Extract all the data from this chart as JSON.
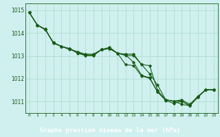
{
  "title": "Graphe pression niveau de la mer (hPa)",
  "bg_color": "#cff0ee",
  "label_bg_color": "#2d7a5a",
  "grid_color": "#b0ddd4",
  "line_color": "#1a5c1a",
  "text_color": "#ffffff",
  "axis_label_color": "#1a5c1a",
  "xlim": [
    -0.5,
    23.5
  ],
  "ylim": [
    1010.5,
    1015.3
  ],
  "yticks": [
    1011,
    1012,
    1013,
    1014,
    1015
  ],
  "xticks": [
    0,
    1,
    2,
    3,
    4,
    5,
    6,
    7,
    8,
    9,
    10,
    11,
    12,
    13,
    14,
    15,
    16,
    17,
    18,
    19,
    20,
    21,
    22,
    23
  ],
  "series": [
    [
      1014.9,
      1014.35,
      1014.15,
      1013.58,
      1013.42,
      1013.32,
      1013.15,
      1013.05,
      1013.05,
      1013.28,
      1013.32,
      1013.12,
      1013.05,
      1012.72,
      1012.15,
      1012.05,
      1011.42,
      1011.05,
      1010.92,
      1011.02,
      1010.82,
      1011.22,
      1011.52,
      1011.52
    ],
    [
      1014.9,
      1014.35,
      1014.15,
      1013.58,
      1013.42,
      1013.32,
      1013.12,
      1013.02,
      1013.02,
      1013.28,
      1013.32,
      1013.12,
      1012.62,
      1012.58,
      1012.12,
      1012.02,
      1011.42,
      1011.08,
      1011.02,
      1010.88,
      1010.82,
      1011.18,
      1011.52,
      1011.52
    ],
    [
      1014.9,
      1014.35,
      1014.18,
      1013.55,
      1013.42,
      1013.28,
      1013.18,
      1013.02,
      1013.02,
      1013.28,
      1013.32,
      1013.12,
      1013.02,
      1013.02,
      1012.62,
      1012.58,
      1011.48,
      1011.08,
      1011.02,
      1011.02,
      1010.82,
      1011.22,
      1011.52,
      1011.52
    ],
    [
      1014.9,
      1014.35,
      1014.15,
      1013.58,
      1013.42,
      1013.32,
      1013.18,
      1013.08,
      1013.08,
      1013.28,
      1013.38,
      1013.12,
      1013.08,
      1013.08,
      1012.62,
      1012.22,
      1011.72,
      1011.08,
      1011.02,
      1011.08,
      1010.88,
      1011.22,
      1011.52,
      1011.52
    ]
  ]
}
